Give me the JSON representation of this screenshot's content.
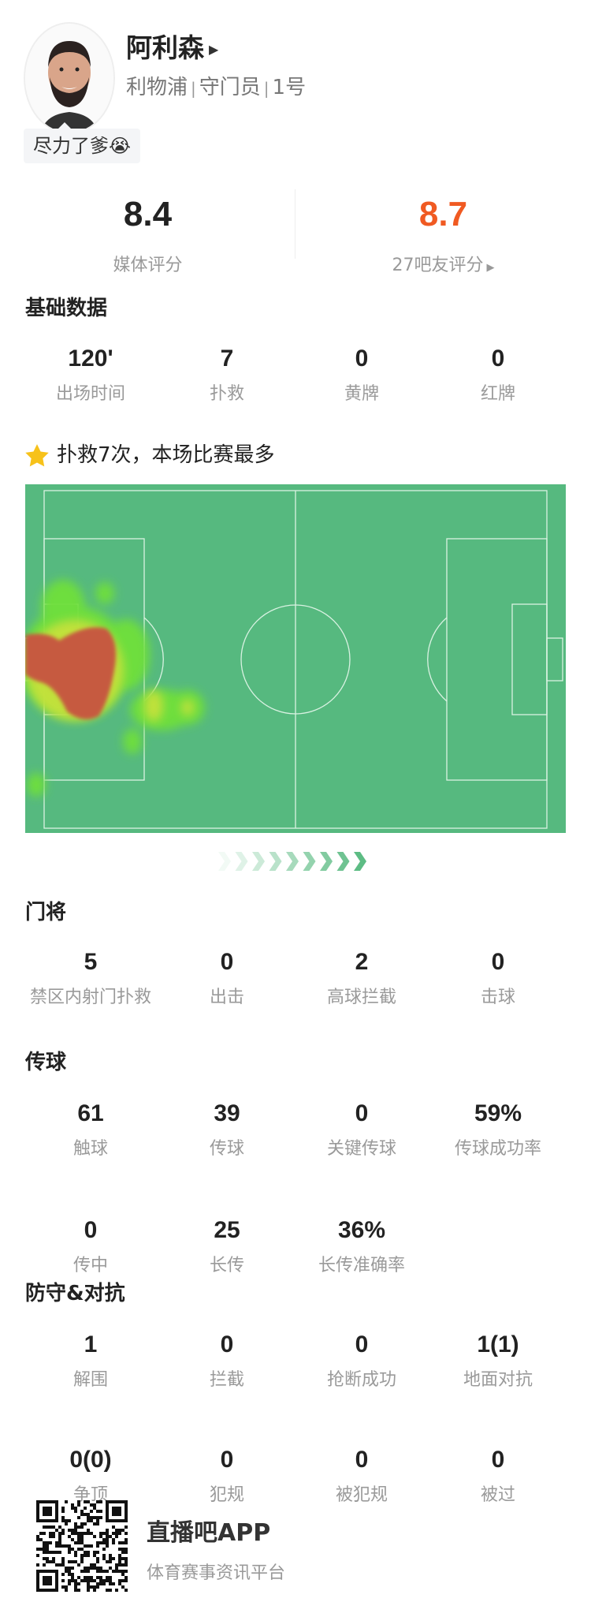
{
  "player": {
    "name": "阿利森",
    "team": "利物浦",
    "position": "守门员",
    "number": "1号",
    "comment": "尽力了爹",
    "comment_emoji": "😭"
  },
  "ratings": {
    "media": {
      "value": "8.4",
      "label": "媒体评分"
    },
    "fans": {
      "value": "8.7",
      "label": "27吧友评分",
      "color": "#f05a22"
    }
  },
  "basic": {
    "title": "基础数据",
    "stats": [
      {
        "value": "120'",
        "label": "出场时间"
      },
      {
        "value": "7",
        "label": "扑救"
      },
      {
        "value": "0",
        "label": "黄牌"
      },
      {
        "value": "0",
        "label": "红牌"
      }
    ]
  },
  "highlight": {
    "icon": "star-icon",
    "text": "扑救7次，本场比赛最多"
  },
  "heatmap": {
    "pitch_color": "#56b97f",
    "attack_direction": "right"
  },
  "goalkeeping": {
    "title": "门将",
    "stats": [
      {
        "value": "5",
        "label": "禁区内射门扑救"
      },
      {
        "value": "0",
        "label": "出击"
      },
      {
        "value": "2",
        "label": "高球拦截"
      },
      {
        "value": "0",
        "label": "击球"
      }
    ]
  },
  "passing": {
    "title": "传球",
    "stats": [
      {
        "value": "61",
        "label": "触球"
      },
      {
        "value": "39",
        "label": "传球"
      },
      {
        "value": "0",
        "label": "关键传球"
      },
      {
        "value": "59%",
        "label": "传球成功率"
      },
      {
        "value": "0",
        "label": "传中"
      },
      {
        "value": "25",
        "label": "长传"
      },
      {
        "value": "36%",
        "label": "长传准确率"
      }
    ]
  },
  "defense": {
    "title": "防守&对抗",
    "stats": [
      {
        "value": "1",
        "label": "解围"
      },
      {
        "value": "0",
        "label": "拦截"
      },
      {
        "value": "0",
        "label": "抢断成功"
      },
      {
        "value": "1(1)",
        "label": "地面对抗"
      },
      {
        "value": "0(0)",
        "label": "争顶"
      },
      {
        "value": "0",
        "label": "犯规"
      },
      {
        "value": "0",
        "label": "被犯规"
      },
      {
        "value": "0",
        "label": "被过"
      }
    ]
  },
  "footer": {
    "app_name": "直播吧APP",
    "slogan": "体育赛事资讯平台"
  }
}
